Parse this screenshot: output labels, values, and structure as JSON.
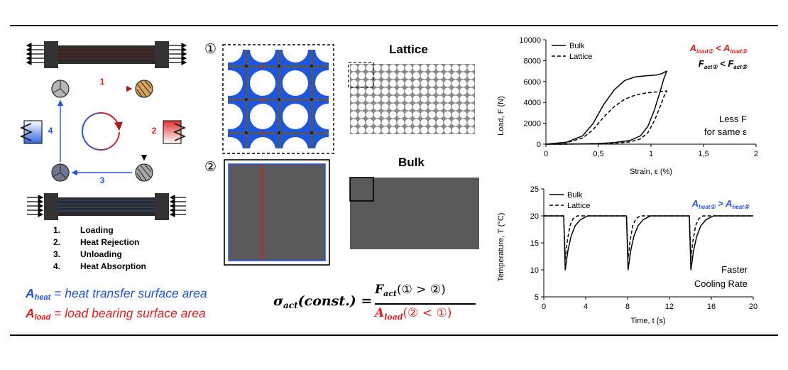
{
  "cycle": {
    "arrow_labels": [
      "1",
      "2",
      "3",
      "4"
    ],
    "steps": [
      {
        "num": "1.",
        "label": "Loading"
      },
      {
        "num": "2.",
        "label": "Heat Rejection"
      },
      {
        "num": "3.",
        "label": "Unloading"
      },
      {
        "num": "4.",
        "label": "Heat Absorption"
      }
    ]
  },
  "definitions": {
    "a_heat_symbol": "A",
    "a_heat_sub": "heat",
    "a_heat_text": " = heat transfer surface area",
    "a_load_symbol": "A",
    "a_load_sub": "load",
    "a_load_text": " = load bearing surface area"
  },
  "structures": {
    "marker1": "①",
    "marker2": "②",
    "lattice_title": "Lattice",
    "bulk_title": "Bulk"
  },
  "formula": {
    "lhs": "σ",
    "lhs_sub": "act",
    "lhs_paren": "(const.) =",
    "num": "F",
    "num_sub": "act",
    "num_paren": "(① > ②)",
    "den": "A",
    "den_sub": "load",
    "den_paren": "(② < ①)"
  },
  "colors": {
    "blue": "#1f56e0",
    "red": "#e01c1c",
    "gray": "#595959"
  },
  "chart_data": [
    {
      "type": "line",
      "xlabel": "Strain, ε (%)",
      "ylabel": "Load, F (N)",
      "xlim": [
        0,
        2
      ],
      "ylim": [
        0,
        10000
      ],
      "xticks": [
        "0",
        "0,5",
        "1",
        "1,5",
        "2"
      ],
      "yticks": [
        "0",
        "2000",
        "4000",
        "6000",
        "8000",
        "10000"
      ],
      "legend": [
        "Bulk",
        "Lattice"
      ],
      "legend_position": "top-left",
      "annotation_top": {
        "l1": "A",
        "l1s": "load①",
        "op1": " < ",
        "l2": "A",
        "l2s": "load②",
        "f1": "F",
        "f1s": "act①",
        "op2": " < ",
        "f2": "F",
        "f2s": "act②"
      },
      "annotation_bottom": {
        "line1": "Less F",
        "line2": "for same ε"
      },
      "series": [
        {
          "name": "Bulk",
          "style": "solid",
          "x": [
            0,
            0.2,
            0.35,
            0.45,
            0.55,
            0.65,
            0.75,
            0.85,
            0.95,
            1.05,
            1.1,
            1.15,
            1.12,
            1.08,
            1.03,
            0.97,
            0.9,
            0.8,
            0.65,
            0.5,
            0.3,
            0.1,
            0
          ],
          "y": [
            0,
            200,
            800,
            2000,
            3800,
            5200,
            6100,
            6450,
            6550,
            6620,
            6750,
            7000,
            6200,
            4800,
            3200,
            1700,
            800,
            350,
            150,
            60,
            20,
            0,
            0
          ]
        },
        {
          "name": "Lattice",
          "style": "dashed",
          "x": [
            0,
            0.2,
            0.35,
            0.45,
            0.55,
            0.65,
            0.75,
            0.85,
            0.95,
            1.05,
            1.1,
            1.15,
            1.12,
            1.08,
            1.03,
            0.97,
            0.9,
            0.8,
            0.65,
            0.5,
            0.3,
            0.1,
            0
          ],
          "y": [
            0,
            150,
            600,
            1400,
            2600,
            3600,
            4300,
            4700,
            4900,
            5000,
            5050,
            5100,
            4500,
            3400,
            2200,
            1100,
            500,
            220,
            90,
            30,
            10,
            0,
            0
          ]
        }
      ]
    },
    {
      "type": "line",
      "xlabel": "Time, t (s)",
      "ylabel": "Temperature, T (°C)",
      "xlim": [
        0,
        20
      ],
      "ylim": [
        5,
        25
      ],
      "xticks": [
        "0",
        "4",
        "8",
        "12",
        "16",
        "20"
      ],
      "yticks": [
        "5",
        "10",
        "15",
        "20",
        "25"
      ],
      "legend": [
        "Bulk",
        "Lattice"
      ],
      "legend_position": "top-left",
      "annotation_top": {
        "l1": "A",
        "l1s": "heat①",
        "op1": " > ",
        "l2": "A",
        "l2s": "heat②"
      },
      "annotation_bottom": {
        "line1": "Faster",
        "line2": "Cooling Rate"
      },
      "series": [
        {
          "name": "Bulk",
          "style": "solid",
          "x": [
            0,
            1.9,
            2.05,
            2.3,
            2.6,
            3.0,
            3.5,
            4.2,
            7.9,
            8.05,
            8.3,
            8.6,
            9.0,
            9.5,
            10.2,
            13.9,
            14.05,
            14.3,
            14.6,
            15.0,
            15.5,
            16.2,
            20
          ],
          "y": [
            20,
            20,
            10,
            13.5,
            16.2,
            18.2,
            19.3,
            20,
            20,
            10,
            13.5,
            16.2,
            18.2,
            19.3,
            20,
            20,
            10,
            13.5,
            16.2,
            18.2,
            19.3,
            20,
            20
          ]
        },
        {
          "name": "Lattice",
          "style": "dashed",
          "x": [
            0,
            1.9,
            2.05,
            2.25,
            2.5,
            2.8,
            3.2,
            7.9,
            8.05,
            8.25,
            8.5,
            8.8,
            9.2,
            13.9,
            14.05,
            14.25,
            14.5,
            14.8,
            15.2,
            20
          ],
          "y": [
            20,
            20,
            12,
            15.5,
            18.2,
            19.5,
            20,
            20,
            12,
            15.5,
            18.2,
            19.5,
            20,
            20,
            12,
            15.5,
            18.2,
            19.5,
            20,
            20
          ]
        }
      ]
    }
  ]
}
